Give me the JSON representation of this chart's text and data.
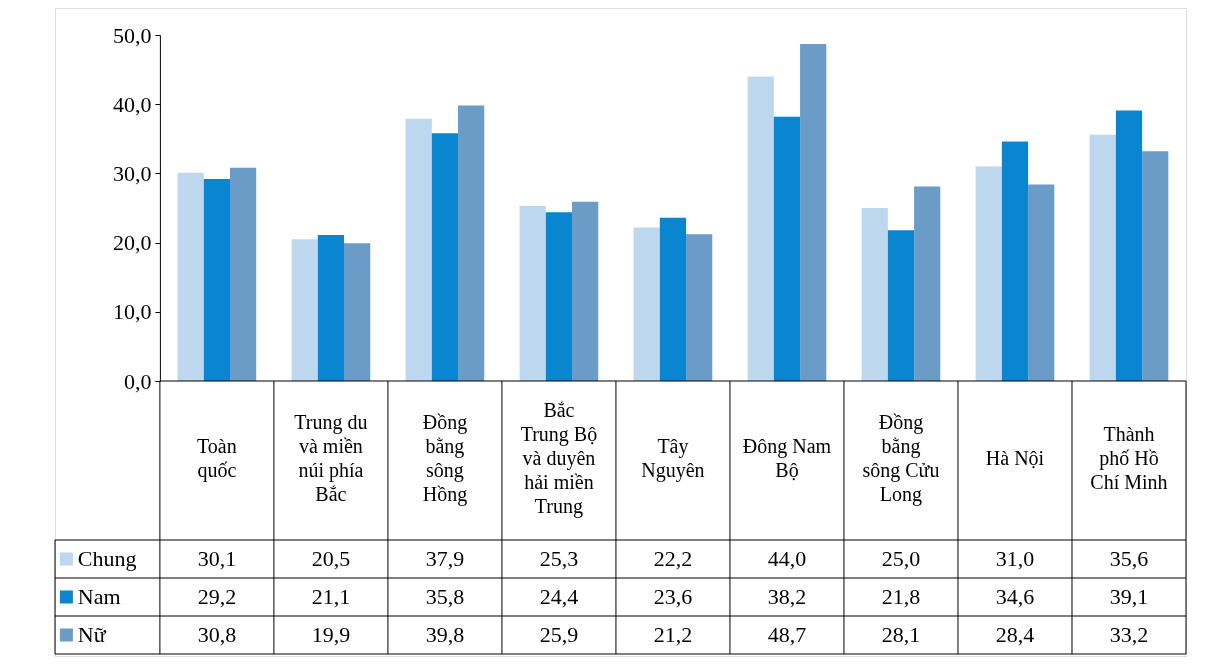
{
  "chart_data": {
    "type": "bar",
    "categories": [
      "Toàn quốc",
      "Trung du và miền núi phía Bắc",
      "Đồng bằng sông Hồng",
      "Bắc Trung Bộ và duyên hải miền Trung",
      "Tây Nguyên",
      "Đông Nam Bộ",
      "Đồng bằng sông Cửu Long",
      "Hà Nội",
      "Thành phố Hồ Chí Minh"
    ],
    "series": [
      {
        "name": "Chung",
        "color": "#bdd7ee",
        "values": [
          30.1,
          20.5,
          37.9,
          25.3,
          22.2,
          44.0,
          25.0,
          31.0,
          35.6
        ],
        "value_labels": [
          "30,1",
          "20,5",
          "37,9",
          "25,3",
          "22,2",
          "44,0",
          "25,0",
          "31,0",
          "35,6"
        ]
      },
      {
        "name": "Nam",
        "color": "#0a85d0",
        "values": [
          29.2,
          21.1,
          35.8,
          24.4,
          23.6,
          38.2,
          21.8,
          34.6,
          39.1
        ],
        "value_labels": [
          "29,2",
          "21,1",
          "35,8",
          "24,4",
          "23,6",
          "38,2",
          "21,8",
          "34,6",
          "39,1"
        ]
      },
      {
        "name": "Nữ",
        "color": "#6a9cc7",
        "values": [
          30.8,
          19.9,
          39.8,
          25.9,
          21.2,
          48.7,
          28.1,
          28.4,
          33.2
        ],
        "value_labels": [
          "30,8",
          "19,9",
          "39,8",
          "25,9",
          "21,2",
          "48,7",
          "28,1",
          "28,4",
          "33,2"
        ]
      }
    ],
    "ylim": [
      0,
      50
    ],
    "yticks": [
      {
        "value": 0,
        "label": "0,0"
      },
      {
        "value": 10,
        "label": "10,0"
      },
      {
        "value": 20,
        "label": "20,0"
      },
      {
        "value": 30,
        "label": "30,0"
      },
      {
        "value": 40,
        "label": "40,0"
      },
      {
        "value": 50,
        "label": "50,0"
      }
    ],
    "legend": "bottom left",
    "grid": false
  }
}
